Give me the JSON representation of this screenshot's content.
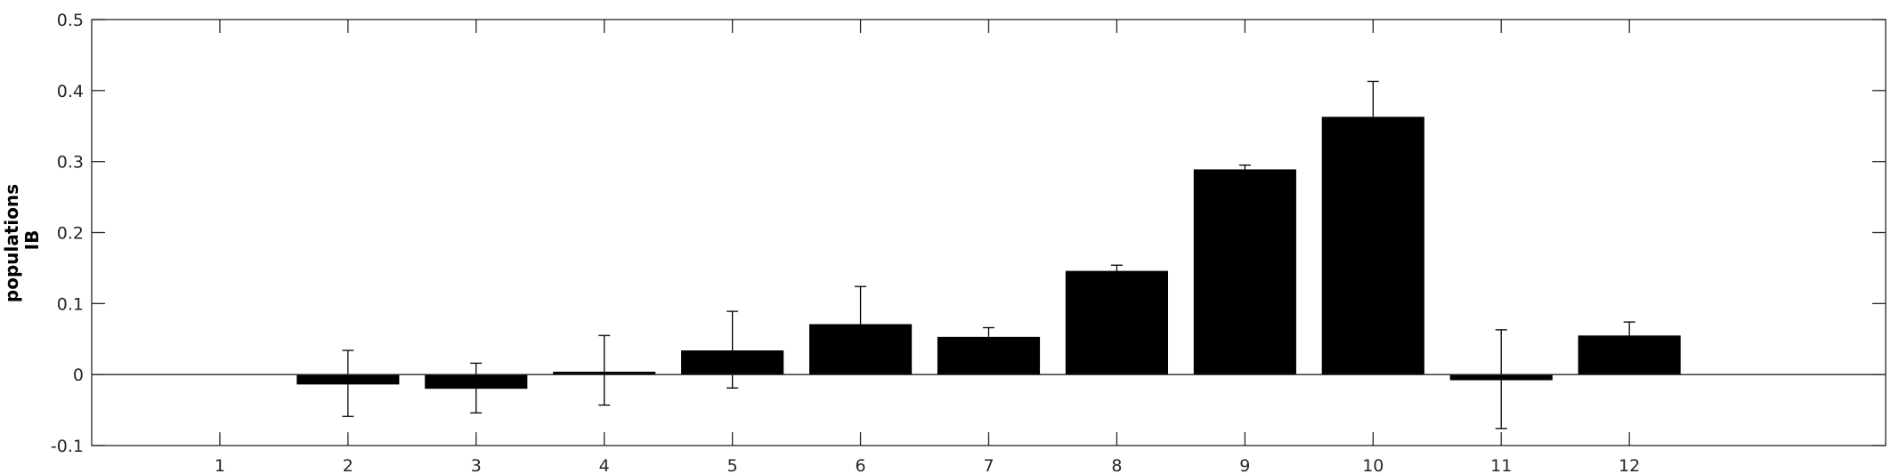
{
  "chart_data": {
    "type": "bar",
    "title": "",
    "xlabel": "",
    "ylabel": [
      "populations",
      "IB"
    ],
    "categories": [
      "1",
      "2",
      "3",
      "4",
      "5",
      "6",
      "7",
      "8",
      "9",
      "10",
      "11",
      "12"
    ],
    "values": [
      null,
      -0.014,
      -0.02,
      0.004,
      0.034,
      0.071,
      0.053,
      0.146,
      0.289,
      0.363,
      -0.008,
      0.055
    ],
    "error_upper": [
      null,
      0.034,
      0.016,
      0.055,
      0.089,
      0.124,
      0.066,
      0.154,
      0.295,
      0.413,
      0.063,
      0.074
    ],
    "error_lower": [
      null,
      -0.059,
      -0.054,
      -0.043,
      -0.019,
      null,
      null,
      null,
      null,
      null,
      -0.076,
      null
    ],
    "ylim": [
      -0.1,
      0.5
    ],
    "xlim": [
      0,
      14
    ],
    "yticks": [
      "-0.1",
      "0",
      "0.1",
      "0.2",
      "0.3",
      "0.4",
      "0.5"
    ],
    "bar_color": "#000000",
    "grid": false,
    "legend": "none"
  }
}
